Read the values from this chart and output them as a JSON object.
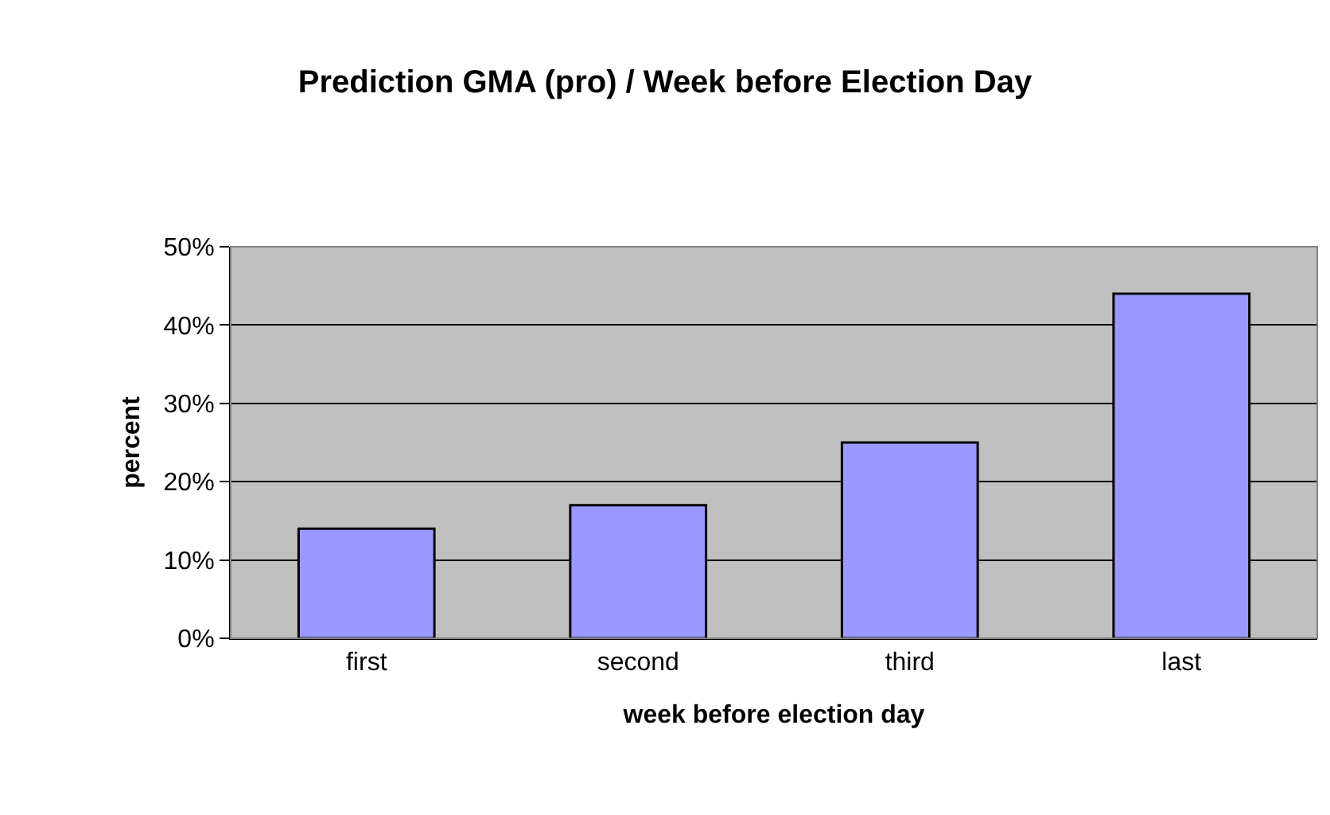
{
  "chart_data": {
    "type": "bar",
    "title": "Prediction GMA (pro) / Week before Election Day",
    "xlabel": "week before election day",
    "ylabel": "percent",
    "categories": [
      "first",
      "second",
      "third",
      "last"
    ],
    "values": [
      14,
      17,
      25,
      44
    ],
    "color": "#9999ff",
    "ylim": [
      0,
      50
    ],
    "yticks": [
      {
        "value": 0,
        "label": "0%"
      },
      {
        "value": 10,
        "label": "10%"
      },
      {
        "value": 20,
        "label": "20%"
      },
      {
        "value": 30,
        "label": "30%"
      },
      {
        "value": 40,
        "label": "40%"
      },
      {
        "value": 50,
        "label": "50%"
      }
    ],
    "grid": "y",
    "legend": false
  }
}
